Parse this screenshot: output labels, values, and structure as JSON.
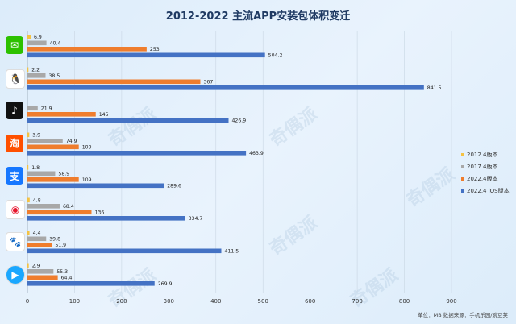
{
  "title": "2012-2022 主流APP安装包体积变迁",
  "footer": "单位：MB  数据来源：手机乐园/豌豆荚",
  "watermark": "奇偶派",
  "chart_data": {
    "type": "bar",
    "orientation": "horizontal",
    "categories": [
      "微信",
      "QQ",
      "抖音",
      "淘宝",
      "支付宝",
      "微博",
      "百度",
      "优酷"
    ],
    "series": [
      {
        "name": "2012.4版本",
        "color": "#f5c242",
        "values": [
          6.9,
          2.2,
          null,
          3.9,
          1.8,
          4.8,
          4.4,
          2.9
        ]
      },
      {
        "name": "2017.4版本",
        "color": "#a8a8a8",
        "values": [
          40.4,
          38.5,
          21.9,
          74.9,
          58.9,
          68.4,
          39.8,
          55.3
        ]
      },
      {
        "name": "2022.4版本",
        "color": "#ef7d2d",
        "values": [
          253,
          367,
          145,
          109,
          109,
          136,
          51.9,
          64.4
        ]
      },
      {
        "name": "2022.4 iOS版本",
        "color": "#4472c4",
        "values": [
          504.2,
          841.5,
          426.9,
          463.9,
          289.6,
          334.7,
          411.5,
          269.9
        ]
      }
    ],
    "value_labels": [
      [
        "6.9",
        "40.4",
        "253",
        "504.2"
      ],
      [
        "2.2",
        "38.5",
        "367",
        "841.5"
      ],
      [
        "",
        "21.9",
        "145",
        "426.9"
      ],
      [
        "3.9",
        "74.9",
        "109",
        "463.9"
      ],
      [
        "1.8",
        "58.9",
        "109",
        "289.6"
      ],
      [
        "4.8",
        "68.4",
        "136",
        "334.7"
      ],
      [
        "4.4",
        "39.8",
        "51.9",
        "411.5"
      ],
      [
        "2.9",
        "55.3",
        "64.4",
        "269.9"
      ]
    ],
    "xticks": [
      "0",
      "100",
      "200",
      "300",
      "400",
      "500",
      "600",
      "700",
      "800",
      "900"
    ],
    "xlim": [
      0,
      900
    ],
    "grid": true,
    "legend_position": "right"
  },
  "icons": [
    {
      "name": "wechat-icon",
      "color": "#2dc100",
      "glyph": "✉"
    },
    {
      "name": "qq-icon",
      "color": "#ffffff",
      "glyph": "🐧"
    },
    {
      "name": "douyin-icon",
      "color": "#111111",
      "glyph": "♪"
    },
    {
      "name": "taobao-icon",
      "color": "#ff5000",
      "glyph": "淘"
    },
    {
      "name": "alipay-icon",
      "color": "#1677ff",
      "glyph": "支"
    },
    {
      "name": "weibo-icon",
      "color": "#ffffff",
      "glyph": "◉"
    },
    {
      "name": "baidu-icon",
      "color": "#ffffff",
      "glyph": "🐾"
    },
    {
      "name": "youku-icon",
      "color": "#ffffff",
      "glyph": "▶"
    }
  ]
}
